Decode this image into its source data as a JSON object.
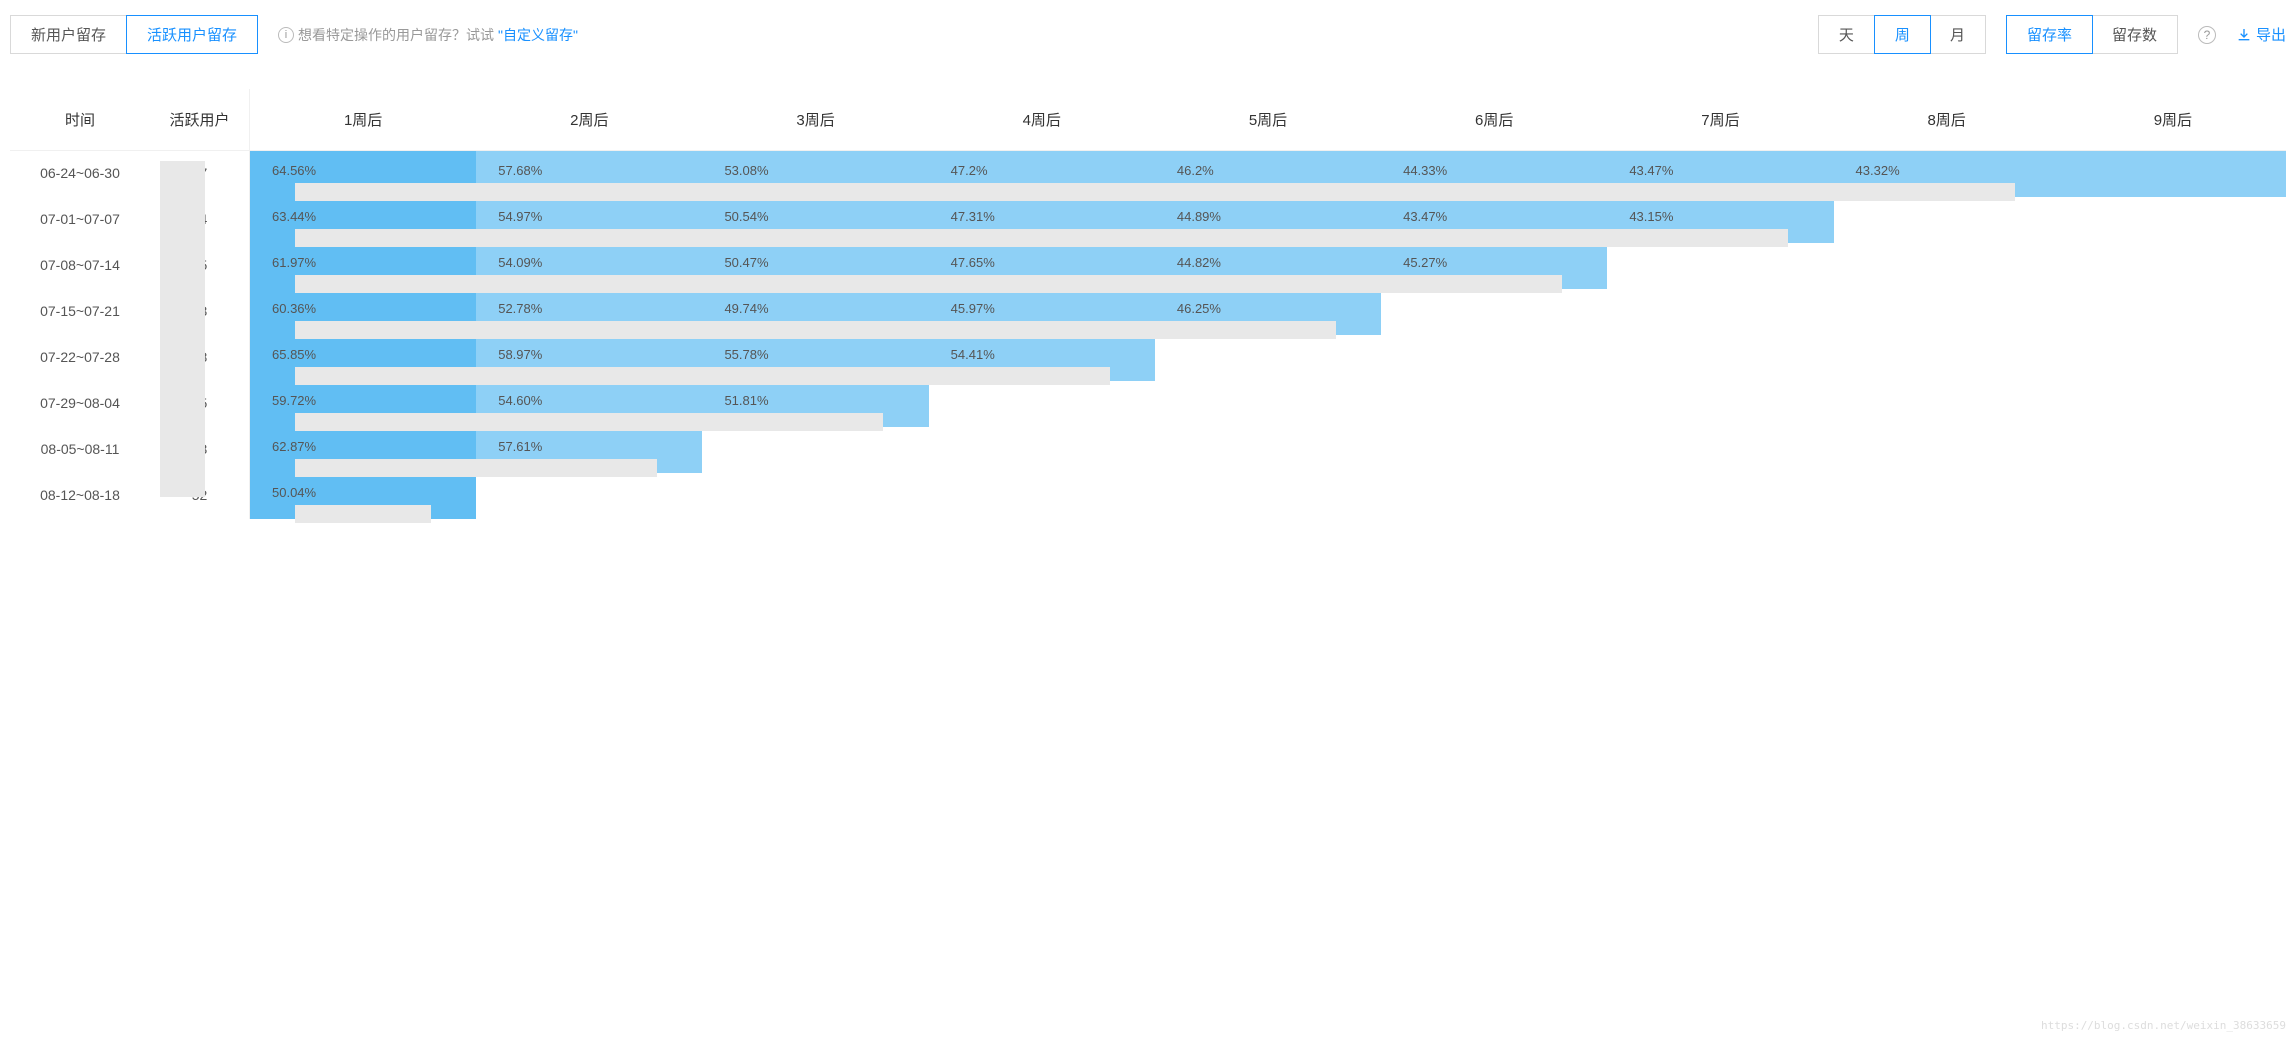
{
  "toolbar": {
    "tabs_left": {
      "new_user": "新用户留存",
      "active_user": "活跃用户留存",
      "active_index": 1
    },
    "hint_text": "想看特定操作的用户留存？试试",
    "hint_link": "\"自定义留存\"",
    "interval_tabs": {
      "day": "天",
      "week": "周",
      "month": "月",
      "active_index": 1
    },
    "metric_tabs": {
      "rate": "留存率",
      "count": "留存数",
      "active_index": 0
    },
    "export": "导出"
  },
  "table": {
    "headers": {
      "time": "时间",
      "users": "活跃用户",
      "weeks": [
        "1周后",
        "2周后",
        "3周后",
        "4周后",
        "5周后",
        "6周后",
        "7周后",
        "8周后",
        "9周后"
      ]
    },
    "colors": {
      "shade_dark": "#61bef3",
      "shade_light": "#8ed0f6",
      "redact": "#e8e8e8"
    },
    "rows": [
      {
        "time": "06-24~06-30",
        "users_suffix": "97",
        "cells": [
          "64.56%",
          "57.68%",
          "53.08%",
          "47.2%",
          "46.2%",
          "44.33%",
          "43.47%",
          "43.32%",
          ""
        ],
        "filled": 9,
        "bar_start": 0,
        "bar_span": 8
      },
      {
        "time": "07-01~07-07",
        "users_suffix": "44",
        "cells": [
          "63.44%",
          "54.97%",
          "50.54%",
          "47.31%",
          "44.89%",
          "43.47%",
          "43.15%"
        ],
        "filled": 7,
        "bar_start": 0,
        "bar_span": 7
      },
      {
        "time": "07-08~07-14",
        "users_suffix": "45",
        "cells": [
          "61.97%",
          "54.09%",
          "50.47%",
          "47.65%",
          "44.82%",
          "45.27%"
        ],
        "filled": 6,
        "bar_start": 0,
        "bar_span": 6
      },
      {
        "time": "07-15~07-21",
        "users_suffix": "53",
        "cells": [
          "60.36%",
          "52.78%",
          "49.74%",
          "45.97%",
          "46.25%"
        ],
        "filled": 5,
        "bar_start": 0,
        "bar_span": 5
      },
      {
        "time": "07-22~07-28",
        "users_suffix": "58",
        "cells": [
          "65.85%",
          "58.97%",
          "55.78%",
          "54.41%"
        ],
        "filled": 4,
        "bar_start": 0,
        "bar_span": 4
      },
      {
        "time": "07-29~08-04",
        "users_suffix": "35",
        "cells": [
          "59.72%",
          "54.60%",
          "51.81%"
        ],
        "filled": 3,
        "bar_start": 0,
        "bar_span": 3
      },
      {
        "time": "08-05~08-11",
        "users_suffix": "03",
        "cells": [
          "62.87%",
          "57.61%"
        ],
        "filled": 2,
        "bar_start": 0,
        "bar_span": 2
      },
      {
        "time": "08-12~08-18",
        "users_suffix": "52",
        "cells": [
          "50.04%"
        ],
        "filled": 1,
        "bar_start": 0,
        "bar_span": 1
      }
    ]
  },
  "watermark": "https://blog.csdn.net/weixin_38633659"
}
